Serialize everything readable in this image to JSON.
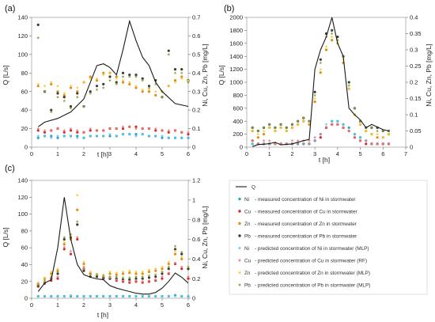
{
  "figure": {
    "legend": {
      "items": [
        {
          "key": "Q",
          "kind": "line",
          "symbol": "",
          "label": "Q",
          "color": "#1a1a1a"
        },
        {
          "key": "ni_m",
          "kind": "dot",
          "symbol": "Ni",
          "label": "- measured concentration of Ni in stormwater",
          "color": "#2aa5c8"
        },
        {
          "key": "cu_m",
          "kind": "dot",
          "symbol": "Cu",
          "label": "- measured concentration of Cu in stormwater",
          "color": "#d62a2a"
        },
        {
          "key": "zn_m",
          "kind": "dot",
          "symbol": "Zn",
          "label": "- measured concentration of Zn in stormwater",
          "color": "#e38b12"
        },
        {
          "key": "pb_m",
          "kind": "dot",
          "symbol": "Pb",
          "label": "- measured concentration of Pb in stormwater",
          "color": "#3d3d3d"
        },
        {
          "key": "ni_p",
          "kind": "star",
          "symbol": "Ni",
          "label": "- predicted concentration of Ni in stormwater (MLP)",
          "color": "#5cc6e6"
        },
        {
          "key": "cu_p",
          "kind": "star",
          "symbol": "Cu",
          "label": "- predicted concentration of Cu in stormwater (RF)",
          "color": "#ef7a7a"
        },
        {
          "key": "zn_p",
          "kind": "star",
          "symbol": "Zn",
          "label": "- predicted concentration of Zn in stormwater (MLP)",
          "color": "#f2cc3c"
        },
        {
          "key": "pb_p",
          "kind": "star",
          "symbol": "Pb",
          "label": "- predicted concentration of Pb in stormwater (MLP)",
          "color": "#8aa63a"
        }
      ]
    }
  },
  "chart_data": [
    {
      "type": "line",
      "panel_label": "(a)",
      "xlabel": "t [h]",
      "ylabel_left": "Q [L/s]",
      "ylabel_right": "Ni, Cu, Zn, Pb [mg/L]",
      "xlim": [
        0,
        6
      ],
      "ylim_left": [
        0,
        140
      ],
      "ylim_right": [
        0,
        0.7
      ],
      "x_ticks": [
        "0",
        "1",
        "2",
        "3",
        "4",
        "5",
        "6"
      ],
      "y_ticks_left": [
        "0",
        "20",
        "40",
        "60",
        "80",
        "100",
        "120",
        "140"
      ],
      "y_ticks_right": [
        "0",
        "0.1",
        "0.2",
        "0.3",
        "0.4",
        "0.5",
        "0.6",
        "0.7"
      ],
      "q": {
        "x": [
          0.25,
          0.5,
          1.0,
          1.5,
          2.0,
          2.5,
          2.75,
          3.0,
          3.25,
          3.5,
          3.75,
          4.0,
          4.25,
          4.5,
          4.75,
          5.0,
          5.5,
          6.0
        ],
        "y": [
          22,
          27,
          31,
          38,
          52,
          88,
          90,
          86,
          78,
          105,
          136,
          115,
          97,
          88,
          70,
          60,
          47,
          44
        ]
      },
      "x": [
        0.25,
        0.5,
        0.75,
        1.0,
        1.25,
        1.5,
        1.75,
        2.0,
        2.25,
        2.5,
        2.75,
        3.0,
        3.25,
        3.5,
        3.75,
        4.0,
        4.25,
        4.5,
        4.75,
        5.0,
        5.25,
        5.5,
        5.75,
        6.0
      ],
      "series": [
        {
          "key": "ni_m",
          "values": [
            0.05,
            0.06,
            0.06,
            0.05,
            0.06,
            0.06,
            0.06,
            0.05,
            0.06,
            0.06,
            0.06,
            0.06,
            0.06,
            0.07,
            0.07,
            0.07,
            0.07,
            0.06,
            0.06,
            0.05,
            0.05,
            0.05,
            0.05,
            0.05
          ]
        },
        {
          "key": "cu_m",
          "values": [
            0.09,
            0.08,
            0.09,
            0.1,
            0.08,
            0.09,
            0.08,
            0.08,
            0.09,
            0.09,
            0.09,
            0.1,
            0.1,
            0.1,
            0.11,
            0.11,
            0.1,
            0.1,
            0.09,
            0.09,
            0.08,
            0.09,
            0.08,
            0.07
          ]
        },
        {
          "key": "zn_m",
          "values": [
            0.33,
            0.3,
            0.34,
            0.3,
            0.28,
            0.32,
            0.3,
            0.35,
            0.38,
            0.36,
            0.4,
            0.4,
            0.38,
            0.35,
            0.34,
            0.32,
            0.3,
            0.3,
            0.28,
            0.3,
            0.33,
            0.36,
            0.38,
            0.36
          ]
        },
        {
          "key": "pb_m",
          "values": [
            0.66,
            0.3,
            0.2,
            0.29,
            0.27,
            0.22,
            0.29,
            0.22,
            0.3,
            0.33,
            0.34,
            0.38,
            0.35,
            0.4,
            0.39,
            0.39,
            0.37,
            0.33,
            0.36,
            0.27,
            0.52,
            0.42,
            0.42,
            0.36
          ]
        },
        {
          "key": "ni_p",
          "values": [
            0.06,
            0.06,
            0.05,
            0.06,
            0.06,
            0.06,
            0.05,
            0.05,
            0.06,
            0.06,
            0.06,
            0.07,
            0.06,
            0.07,
            0.07,
            0.06,
            0.07,
            0.06,
            0.06,
            0.06,
            0.05,
            0.05,
            0.05,
            0.05
          ]
        },
        {
          "key": "cu_p",
          "values": [
            0.1,
            0.09,
            0.09,
            0.1,
            0.09,
            0.1,
            0.09,
            0.08,
            0.1,
            0.09,
            0.09,
            0.1,
            0.1,
            0.11,
            0.11,
            0.1,
            0.1,
            0.1,
            0.1,
            0.09,
            0.09,
            0.09,
            0.08,
            0.08
          ]
        },
        {
          "key": "zn_p",
          "values": [
            0.34,
            0.33,
            0.35,
            0.33,
            0.29,
            0.33,
            0.32,
            0.35,
            0.37,
            0.37,
            0.39,
            0.4,
            0.37,
            0.36,
            0.35,
            0.33,
            0.31,
            0.31,
            0.3,
            0.3,
            0.33,
            0.35,
            0.37,
            0.36
          ]
        },
        {
          "key": "pb_p",
          "values": [
            0.59,
            0.3,
            0.19,
            0.27,
            0.25,
            0.21,
            0.27,
            0.22,
            0.29,
            0.31,
            0.32,
            0.36,
            0.34,
            0.38,
            0.38,
            0.38,
            0.36,
            0.32,
            0.34,
            0.27,
            0.5,
            0.4,
            0.4,
            0.35
          ]
        }
      ]
    },
    {
      "type": "line",
      "panel_label": "(b)",
      "xlabel": "t [h]",
      "ylabel_left": "Q [L/s]",
      "ylabel_right": "Ni, Cu, Zn, Pb [mg/L]",
      "xlim": [
        0,
        7
      ],
      "ylim_left": [
        0,
        2000
      ],
      "ylim_right": [
        0,
        0.4
      ],
      "x_ticks": [
        "0",
        "1",
        "2",
        "3",
        "4",
        "5",
        "6",
        "7"
      ],
      "y_ticks_left": [
        "0",
        "200",
        "400",
        "600",
        "800",
        "1000",
        "1200",
        "1400",
        "1600",
        "1800",
        "2000"
      ],
      "y_ticks_right": [
        "0",
        "0.05",
        "0.1",
        "0.15",
        "0.2",
        "0.25",
        "0.3",
        "0.35",
        "0.4"
      ],
      "q": {
        "x": [
          0.25,
          0.5,
          0.75,
          1.0,
          1.25,
          1.5,
          2.0,
          2.5,
          2.75,
          3.0,
          3.25,
          3.5,
          3.75,
          4.0,
          4.25,
          4.5,
          4.75,
          5.0,
          5.25,
          5.5,
          6.0,
          6.25
        ],
        "y": [
          10,
          40,
          45,
          55,
          75,
          35,
          50,
          100,
          120,
          1200,
          1500,
          1700,
          2000,
          1600,
          1400,
          600,
          500,
          420,
          300,
          350,
          270,
          250
        ]
      },
      "x": [
        0.25,
        0.5,
        0.75,
        1.0,
        1.25,
        1.5,
        1.75,
        2.0,
        2.25,
        2.5,
        2.75,
        3.0,
        3.25,
        3.5,
        3.75,
        4.0,
        4.25,
        4.5,
        4.75,
        5.0,
        5.25,
        5.5,
        5.75,
        6.0,
        6.25
      ],
      "series": [
        {
          "key": "ni_m",
          "values": [
            0.01,
            0.01,
            0.01,
            0.01,
            0.01,
            0.01,
            0.01,
            0.01,
            0.01,
            0.01,
            0.01,
            0.02,
            0.04,
            0.06,
            0.08,
            0.08,
            0.07,
            0.06,
            0.04,
            0.03,
            0.02,
            0.01,
            0.01,
            0.01,
            0.01
          ]
        },
        {
          "key": "cu_m",
          "values": [
            0.02,
            0.01,
            0.01,
            0.01,
            0.01,
            0.01,
            0.01,
            0.01,
            0.01,
            0.01,
            0.01,
            0.02,
            0.03,
            0.06,
            0.07,
            0.07,
            0.06,
            0.05,
            0.03,
            0.02,
            0.01,
            0.01,
            0.01,
            0.01,
            0.01
          ]
        },
        {
          "key": "zn_m",
          "values": [
            0.05,
            0.03,
            0.04,
            0.06,
            0.05,
            0.06,
            0.05,
            0.06,
            0.07,
            0.08,
            0.07,
            0.14,
            0.23,
            0.3,
            0.33,
            0.32,
            0.26,
            0.18,
            0.1,
            0.07,
            0.05,
            0.04,
            0.03,
            0.03,
            0.04
          ]
        },
        {
          "key": "pb_m",
          "values": [
            0.06,
            0.05,
            0.06,
            0.07,
            0.06,
            0.07,
            0.06,
            0.07,
            0.08,
            0.09,
            0.08,
            0.17,
            0.27,
            0.35,
            0.36,
            0.34,
            0.28,
            0.2,
            0.12,
            0.08,
            0.06,
            0.06,
            0.06,
            0.05,
            0.05
          ]
        },
        {
          "key": "ni_p",
          "values": [
            0.01,
            0.01,
            0.01,
            0.01,
            0.01,
            0.01,
            0.01,
            0.01,
            0.01,
            0.01,
            0.01,
            0.02,
            0.04,
            0.07,
            0.08,
            0.08,
            0.07,
            0.05,
            0.04,
            0.03,
            0.02,
            0.01,
            0.01,
            0.01,
            0.01
          ]
        },
        {
          "key": "cu_p",
          "values": [
            0.02,
            0.01,
            0.02,
            0.02,
            0.01,
            0.01,
            0.01,
            0.02,
            0.02,
            0.02,
            0.02,
            0.03,
            0.04,
            0.06,
            0.07,
            0.07,
            0.06,
            0.05,
            0.03,
            0.02,
            0.02,
            0.01,
            0.01,
            0.01,
            0.01
          ]
        },
        {
          "key": "zn_p",
          "values": [
            0.05,
            0.04,
            0.05,
            0.06,
            0.05,
            0.06,
            0.05,
            0.06,
            0.07,
            0.08,
            0.08,
            0.15,
            0.24,
            0.31,
            0.34,
            0.32,
            0.27,
            0.18,
            0.1,
            0.07,
            0.05,
            0.04,
            0.04,
            0.03,
            0.04
          ]
        },
        {
          "key": "pb_p",
          "values": [
            0.06,
            0.05,
            0.06,
            0.07,
            0.06,
            0.07,
            0.06,
            0.07,
            0.08,
            0.09,
            0.08,
            0.16,
            0.26,
            0.34,
            0.35,
            0.33,
            0.28,
            0.19,
            0.12,
            0.08,
            0.06,
            0.06,
            0.05,
            0.05,
            0.05
          ]
        }
      ]
    },
    {
      "type": "line",
      "panel_label": "(c)",
      "xlabel": "t [h]",
      "ylabel_left": "Q [L/s]",
      "ylabel_right": "Ni, Cu, Zn, Pb [mg/L]",
      "xlim": [
        0,
        6
      ],
      "ylim_left": [
        0,
        140
      ],
      "ylim_right": [
        0,
        1.2
      ],
      "x_ticks": [
        "0",
        "1",
        "2",
        "3",
        "4",
        "5",
        "6"
      ],
      "y_ticks_left": [
        "0",
        "20",
        "40",
        "60",
        "80",
        "100",
        "120",
        "140"
      ],
      "y_ticks_right": [
        "0",
        "0.2",
        "0.4",
        "0.6",
        "0.8",
        "1",
        "1.2"
      ],
      "q": {
        "x": [
          0.25,
          0.5,
          0.75,
          1.0,
          1.25,
          1.5,
          1.75,
          2.0,
          2.25,
          2.5,
          2.75,
          3.0,
          3.25,
          3.5,
          3.75,
          4.0,
          4.25,
          4.5,
          4.75,
          5.0,
          5.25,
          5.5,
          5.75,
          6.0
        ],
        "y": [
          8,
          18,
          22,
          60,
          120,
          70,
          40,
          28,
          25,
          23,
          22,
          15,
          12,
          10,
          8,
          6,
          5,
          5,
          7,
          12,
          20,
          30,
          25,
          18
        ]
      },
      "x": [
        0.25,
        0.5,
        0.75,
        1.0,
        1.25,
        1.5,
        1.75,
        2.0,
        2.25,
        2.5,
        2.75,
        3.0,
        3.25,
        3.5,
        3.75,
        4.0,
        4.25,
        4.5,
        4.75,
        5.0,
        5.25,
        5.5,
        5.75,
        6.0
      ],
      "series": [
        {
          "key": "ni_m",
          "values": [
            0.02,
            0.02,
            0.02,
            0.02,
            0.02,
            0.02,
            0.02,
            0.02,
            0.02,
            0.02,
            0.02,
            0.02,
            0.02,
            0.02,
            0.02,
            0.02,
            0.02,
            0.02,
            0.02,
            0.02,
            0.02,
            0.03,
            0.02,
            0.02
          ]
        },
        {
          "key": "cu_m",
          "values": [
            0.12,
            0.15,
            0.18,
            0.2,
            0.5,
            0.45,
            0.6,
            0.3,
            0.25,
            0.22,
            0.2,
            0.2,
            0.18,
            0.17,
            0.16,
            0.17,
            0.16,
            0.17,
            0.18,
            0.2,
            0.25,
            0.35,
            0.3,
            0.2
          ]
        },
        {
          "key": "zn_m",
          "values": [
            0.15,
            0.2,
            0.25,
            0.28,
            0.55,
            0.6,
            0.9,
            0.35,
            0.25,
            0.23,
            0.22,
            0.25,
            0.24,
            0.25,
            0.26,
            0.25,
            0.25,
            0.27,
            0.28,
            0.3,
            0.35,
            0.45,
            0.4,
            0.3
          ]
        },
        {
          "key": "pb_m",
          "values": [
            0.13,
            0.16,
            0.2,
            0.25,
            0.6,
            0.62,
            0.75,
            0.28,
            0.22,
            0.22,
            0.21,
            0.2,
            0.2,
            0.19,
            0.19,
            0.2,
            0.2,
            0.21,
            0.22,
            0.25,
            0.3,
            0.5,
            0.45,
            0.3
          ]
        },
        {
          "key": "ni_p",
          "values": [
            0.02,
            0.02,
            0.02,
            0.02,
            0.02,
            0.03,
            0.02,
            0.02,
            0.02,
            0.02,
            0.02,
            0.02,
            0.02,
            0.02,
            0.02,
            0.02,
            0.02,
            0.02,
            0.02,
            0.02,
            0.02,
            0.02,
            0.02,
            0.02
          ]
        },
        {
          "key": "cu_p",
          "values": [
            0.14,
            0.16,
            0.2,
            0.22,
            0.52,
            0.48,
            0.62,
            0.32,
            0.26,
            0.24,
            0.22,
            0.21,
            0.19,
            0.18,
            0.17,
            0.18,
            0.17,
            0.18,
            0.19,
            0.22,
            0.26,
            0.36,
            0.32,
            0.22
          ]
        },
        {
          "key": "zn_p",
          "values": [
            0.16,
            0.21,
            0.27,
            0.3,
            0.57,
            0.63,
            1.05,
            0.37,
            0.27,
            0.25,
            0.24,
            0.27,
            0.26,
            0.27,
            0.28,
            0.27,
            0.27,
            0.29,
            0.3,
            0.32,
            0.37,
            0.48,
            0.42,
            0.32
          ]
        },
        {
          "key": "pb_p",
          "values": [
            0.14,
            0.18,
            0.22,
            0.27,
            0.62,
            0.65,
            0.78,
            0.3,
            0.24,
            0.24,
            0.23,
            0.22,
            0.22,
            0.21,
            0.21,
            0.22,
            0.22,
            0.23,
            0.24,
            0.27,
            0.32,
            0.53,
            0.47,
            0.32
          ]
        }
      ]
    }
  ]
}
